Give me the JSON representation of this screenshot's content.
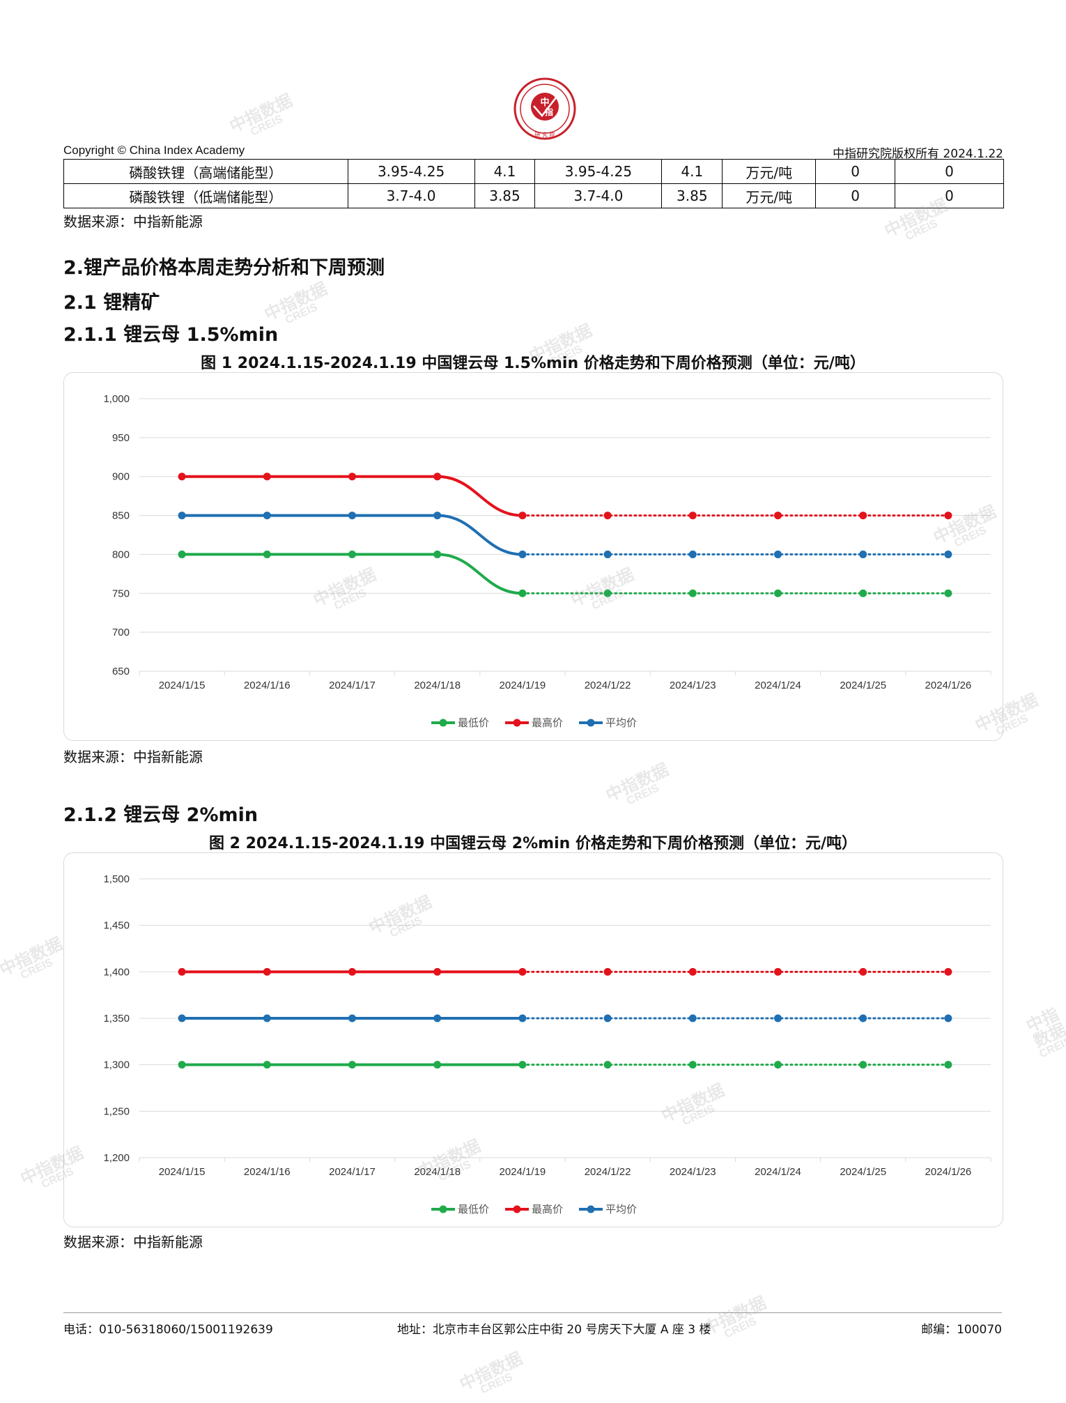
{
  "header": {
    "left": "Copyright © China Index Academy",
    "right": "中指研究院版权所有 2024.1.22",
    "logo": {
      "top_text": "CHINA INDEX ACADEMY",
      "center_top": "中",
      "center_bottom": "指",
      "bottom_text": "研究院",
      "color": "#c8202a"
    }
  },
  "table_rows": [
    [
      "磷酸铁锂（高端储能型）",
      "3.95-4.25",
      "4.1",
      "3.95-4.25",
      "4.1",
      "万元/吨",
      "0",
      "0"
    ],
    [
      "磷酸铁锂（低端储能型）",
      "3.7-4.0",
      "3.85",
      "3.7-4.0",
      "3.85",
      "万元/吨",
      "0",
      "0"
    ]
  ],
  "source_text": "数据来源：中指新能源",
  "headings": {
    "h1": "2.锂产品价格本周走势分析和下周预测",
    "h2": "2.1 锂精矿",
    "h3a": "2.1.1 锂云母 1.5%min",
    "h3b": "2.1.2 锂云母 2%min"
  },
  "figure_titles": {
    "fig1": "图 1 2024.1.15-2024.1.19 中国锂云母 1.5%min 价格走势和下周价格预测（单位：元/吨）",
    "fig2": "图 2 2024.1.15-2024.1.19 中国锂云母 2%min 价格走势和下周价格预测（单位：元/吨）"
  },
  "footer": {
    "phone": "电话：010-56318060/15001192639",
    "address": "地址：北京市丰台区郭公庄中街 20 号房天下大厦 A 座 3 楼",
    "zip": "邮编：100070"
  },
  "watermark": {
    "line1": "中指数据",
    "line2": "CREIS"
  },
  "colors": {
    "min": "#1faa4b",
    "max": "#e3121b",
    "avg": "#1f6fb2",
    "grid": "#d9d9d9"
  },
  "chart_data": [
    {
      "type": "line",
      "title": "图 1 2024.1.15-2024.1.19 中国锂云母 1.5%min 价格走势和下周价格预测（单位：元/吨）",
      "categories": [
        "2024/1/15",
        "2024/1/16",
        "2024/1/17",
        "2024/1/18",
        "2024/1/19",
        "2024/1/22",
        "2024/1/23",
        "2024/1/24",
        "2024/1/25",
        "2024/1/26"
      ],
      "actual_count": 5,
      "ylim": [
        650,
        1000
      ],
      "ytick_step": 50,
      "series": [
        {
          "name": "最低价",
          "color": "#1faa4b",
          "values": [
            800,
            800,
            800,
            800,
            750,
            750,
            750,
            750,
            750,
            750
          ]
        },
        {
          "name": "最高价",
          "color": "#e3121b",
          "values": [
            900,
            900,
            900,
            900,
            850,
            850,
            850,
            850,
            850,
            850
          ]
        },
        {
          "name": "平均价",
          "color": "#1f6fb2",
          "values": [
            850,
            850,
            850,
            850,
            800,
            800,
            800,
            800,
            800,
            800
          ]
        }
      ],
      "grid": true,
      "legend": "bottom"
    },
    {
      "type": "line",
      "title": "图 2 2024.1.15-2024.1.19 中国锂云母 2%min 价格走势和下周价格预测（单位：元/吨）",
      "categories": [
        "2024/1/15",
        "2024/1/16",
        "2024/1/17",
        "2024/1/18",
        "2024/1/19",
        "2024/1/22",
        "2024/1/23",
        "2024/1/24",
        "2024/1/25",
        "2024/1/26"
      ],
      "actual_count": 5,
      "ylim": [
        1200,
        1500
      ],
      "ytick_step": 50,
      "series": [
        {
          "name": "最低价",
          "color": "#1faa4b",
          "values": [
            1300,
            1300,
            1300,
            1300,
            1300,
            1300,
            1300,
            1300,
            1300,
            1300
          ]
        },
        {
          "name": "最高价",
          "color": "#e3121b",
          "values": [
            1400,
            1400,
            1400,
            1400,
            1400,
            1400,
            1400,
            1400,
            1400,
            1400
          ]
        },
        {
          "name": "平均价",
          "color": "#1f6fb2",
          "values": [
            1350,
            1350,
            1350,
            1350,
            1350,
            1350,
            1350,
            1350,
            1350,
            1350
          ]
        }
      ],
      "grid": true,
      "legend": "bottom"
    }
  ]
}
